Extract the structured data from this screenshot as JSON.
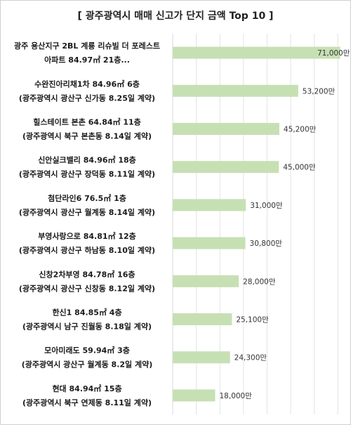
{
  "chart_data": {
    "type": "bar",
    "orientation": "horizontal",
    "title": "[ 광주광역시 매매 신고가 단지 금액 Top 10 ]",
    "bar_color": "#c6e0b4",
    "gridline_color": "#e3e3e3",
    "grid": true,
    "xlim": [
      0,
      72000
    ],
    "categories": [
      [
        "광주 용산지구 2BL 계룡 리슈빌 더 포레스트",
        "아파트 84.97㎡ 21층..."
      ],
      [
        "수완진아리채1차 84.96㎡ 6층",
        "(광주광역시 광산구 신가동 8.25일 계약)"
      ],
      [
        "힐스테이트 본촌 64.84㎡ 11층",
        "(광주광역시 북구 본촌동 8.14일 계약)"
      ],
      [
        "신안실크밸리 84.96㎡ 18층",
        "(광주광역시 광산구 장덕동 8.11일 계약)"
      ],
      [
        "첨단라인6 76.5㎡ 1층",
        "(광주광역시 광산구 월계동 8.14일 계약)"
      ],
      [
        "부영사랑으로 84.81㎡ 12층",
        "(광주광역시 광산구 하남동 8.10일 계약)"
      ],
      [
        "신창2차부영 84.78㎡ 16층",
        "(광주광역시 광산구 신창동 8.12일 계약)"
      ],
      [
        "한신1 84.85㎡ 4층",
        "(광주광역시 남구 진월동 8.18일 계약)"
      ],
      [
        "모아미래도 59.94㎡ 3층",
        "(광주광역시 광산구 월계동 8.2일 계약)"
      ],
      [
        "현대 84.94㎡ 15층",
        "(광주광역시 북구 연제동 8.11일 계약)"
      ]
    ],
    "values": [
      71000,
      53200,
      45200,
      45000,
      31000,
      30800,
      28000,
      25100,
      24300,
      18000
    ],
    "value_labels": [
      "71,000만",
      "53,200만",
      "45,200만",
      "45,000만",
      "31,000만",
      "30,800만",
      "28,000만",
      "25,100만",
      "24,300만",
      "18,000만"
    ]
  }
}
